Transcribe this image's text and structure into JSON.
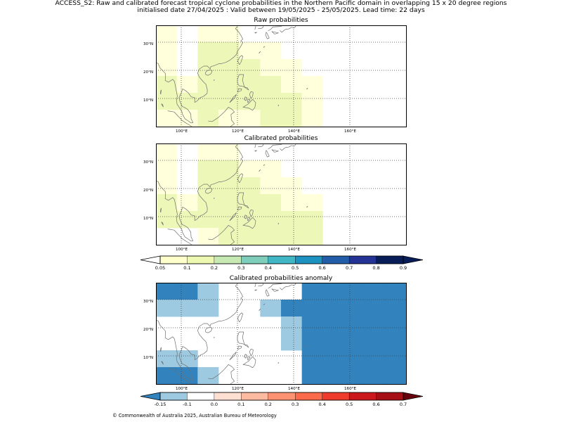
{
  "header": {
    "line1": "ACCESS_S2: Raw and calibrated forecast tropical cyclone probabilities in the Northern Pacific domain in overlapping 15 x 20 degree regions",
    "line2": "initialised date 27/04/2025 :  Valid between 19/05/2025 - 25/05/2025. Lead time: 22 days"
  },
  "panels": [
    {
      "title": "Raw probabilities",
      "cells": [
        [
          1,
          0,
          1,
          1,
          0,
          0,
          0,
          0,
          0,
          0,
          0,
          0
        ],
        [
          1,
          0,
          2,
          2,
          1,
          1,
          0,
          0,
          0,
          0,
          0,
          0
        ],
        [
          1,
          0,
          2,
          2,
          2,
          1,
          1,
          0,
          0,
          0,
          0,
          0
        ],
        [
          2,
          1,
          2,
          2,
          2,
          2,
          1,
          1,
          0,
          0,
          0,
          0
        ],
        [
          2,
          2,
          2,
          2,
          2,
          2,
          2,
          1,
          0,
          0,
          0,
          0
        ],
        [
          1,
          1,
          2,
          1,
          1,
          2,
          2,
          1,
          0,
          0,
          0,
          0
        ]
      ]
    },
    {
      "title": "Calibrated probabilities",
      "cells": [
        [
          1,
          0,
          1,
          1,
          0,
          0,
          0,
          0,
          0,
          0,
          0,
          0
        ],
        [
          1,
          0,
          2,
          2,
          1,
          1,
          0,
          0,
          0,
          0,
          0,
          0
        ],
        [
          1,
          0,
          2,
          2,
          2,
          1,
          1,
          0,
          0,
          0,
          0,
          0
        ],
        [
          2,
          1,
          2,
          2,
          2,
          2,
          1,
          1,
          0,
          0,
          0,
          0
        ],
        [
          2,
          2,
          2,
          2,
          2,
          2,
          2,
          2,
          0,
          0,
          0,
          0
        ],
        [
          0,
          0,
          1,
          2,
          2,
          2,
          2,
          2,
          0,
          0,
          0,
          0
        ]
      ]
    },
    {
      "title": "Calibrated probabilities anomaly",
      "cells": [
        [
          -2,
          -2,
          -1,
          0,
          0,
          0,
          0,
          -2,
          -2,
          -2,
          -2,
          -2
        ],
        [
          -1,
          -1,
          -1,
          0,
          0,
          -1,
          -2,
          -2,
          -2,
          -2,
          -2,
          -2
        ],
        [
          0,
          0,
          0,
          0,
          0,
          0,
          -1,
          -2,
          -2,
          -2,
          -2,
          -2
        ],
        [
          0,
          0,
          0,
          0,
          0,
          0,
          -1,
          -2,
          -2,
          -2,
          -2,
          -2
        ],
        [
          -1,
          -1,
          0,
          0,
          0,
          0,
          0,
          -2,
          -2,
          -2,
          -2,
          -2
        ],
        [
          -2,
          -2,
          -1,
          0,
          0,
          0,
          0,
          -2,
          -2,
          -2,
          -2,
          -2
        ]
      ]
    }
  ],
  "axes": {
    "lon_ticks": [
      "100°E",
      "120°E",
      "140°E",
      "160°E"
    ],
    "lat_ticks": [
      "30°N",
      "20°N",
      "10°N"
    ]
  },
  "colorbars": {
    "probability": {
      "labels": [
        "0.05",
        "0.1",
        "0.2",
        "0.3",
        "0.4",
        "0.5",
        "0.6",
        "0.7",
        "0.8",
        "0.9"
      ],
      "colors": [
        "#ffffff",
        "#ffffcc",
        "#edf8b1",
        "#c7e9b4",
        "#7fcdbb",
        "#41b6c4",
        "#1d91c0",
        "#225ea8",
        "#253494",
        "#081d58",
        "#081d58"
      ]
    },
    "anomaly": {
      "labels": [
        "-0.15",
        "-0.1",
        "0.0",
        "0.1",
        "0.2",
        "0.3",
        "0.4",
        "0.5",
        "0.6",
        "0.7"
      ],
      "colors": [
        "#3182bd",
        "#9ecae1",
        "#ffffff",
        "#fee0d2",
        "#fcbba1",
        "#fc9272",
        "#fb6a4a",
        "#ef3b2c",
        "#cb181d",
        "#a50f15",
        "#67000d"
      ]
    }
  },
  "colors": {
    "prob_levels": [
      "#ffffff",
      "#ffffdc",
      "#edf8b8"
    ],
    "anom_levels": {
      "-2": "#3182bd",
      "-1": "#9ecae1",
      "0": "#ffffff"
    }
  },
  "footer": {
    "copyright": "© Commonwealth of Australia 2025, Australian Bureau of Meteorology"
  }
}
